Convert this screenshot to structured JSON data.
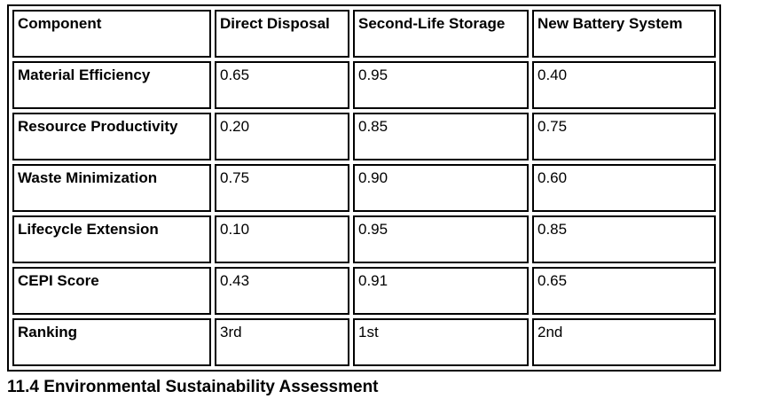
{
  "table": {
    "columns": [
      "Component",
      "Direct Disposal",
      "Second-Life Storage",
      "New Battery System"
    ],
    "rows": [
      {
        "label": "Material Efficiency",
        "values": [
          "0.65",
          "0.95",
          "0.40"
        ]
      },
      {
        "label": "Resource Productivity",
        "values": [
          "0.20",
          "0.85",
          "0.75"
        ]
      },
      {
        "label": "Waste Minimization",
        "values": [
          "0.75",
          "0.90",
          "0.60"
        ]
      },
      {
        "label": "Lifecycle Extension",
        "values": [
          "0.10",
          "0.95",
          "0.85"
        ]
      },
      {
        "label": "CEPI Score",
        "values": [
          "0.43",
          "0.91",
          "0.65"
        ]
      },
      {
        "label": "Ranking",
        "values": [
          "3rd",
          "1st",
          "2nd"
        ]
      }
    ]
  },
  "caption": "11.4 Environmental Sustainability Assessment"
}
